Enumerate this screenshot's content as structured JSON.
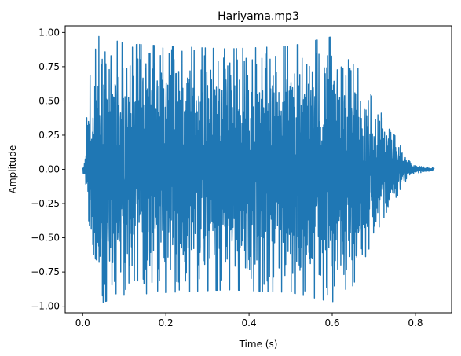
{
  "chart_data": {
    "type": "line",
    "title": "Hariyama.mp3",
    "xlabel": "Time (s)",
    "ylabel": "Amplitude",
    "xlim": [
      -0.042,
      0.887
    ],
    "ylim": [
      -1.048,
      1.048
    ],
    "xticks": [
      0.0,
      0.2,
      0.4,
      0.6,
      0.8
    ],
    "xtick_labels": [
      "0.0",
      "0.2",
      "0.4",
      "0.6",
      "0.8"
    ],
    "yticks": [
      -1.0,
      -0.75,
      -0.5,
      -0.25,
      0.0,
      0.25,
      0.5,
      0.75,
      1.0
    ],
    "ytick_labels": [
      "−1.00",
      "−0.75",
      "−0.50",
      "−0.25",
      "0.00",
      "0.25",
      "0.50",
      "0.75",
      "1.00"
    ],
    "grid": false,
    "legend": "none",
    "series": [
      {
        "color": "#1f77b4",
        "duration_s": 0.845,
        "envelope": [
          {
            "t": 0.0,
            "a": 0.0
          },
          {
            "t": 0.005,
            "a": 0.1
          },
          {
            "t": 0.012,
            "a": 0.55
          },
          {
            "t": 0.025,
            "a": 0.85
          },
          {
            "t": 0.04,
            "a": 0.98
          },
          {
            "t": 0.1,
            "a": 0.92
          },
          {
            "t": 0.2,
            "a": 0.9
          },
          {
            "t": 0.35,
            "a": 0.88
          },
          {
            "t": 0.5,
            "a": 0.9
          },
          {
            "t": 0.6,
            "a": 0.97
          },
          {
            "t": 0.65,
            "a": 0.85
          },
          {
            "t": 0.7,
            "a": 0.5
          },
          {
            "t": 0.75,
            "a": 0.25
          },
          {
            "t": 0.78,
            "a": 0.08
          },
          {
            "t": 0.8,
            "a": 0.03
          },
          {
            "t": 0.845,
            "a": 0.01
          }
        ]
      }
    ]
  }
}
